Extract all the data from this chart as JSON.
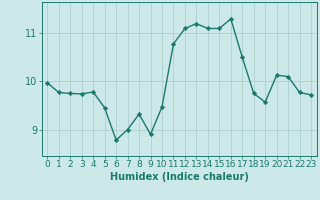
{
  "x": [
    0,
    1,
    2,
    3,
    4,
    5,
    6,
    7,
    8,
    9,
    10,
    11,
    12,
    13,
    14,
    15,
    16,
    17,
    18,
    19,
    20,
    21,
    22,
    23
  ],
  "y": [
    9.97,
    9.77,
    9.75,
    9.74,
    9.78,
    9.45,
    8.78,
    9.0,
    9.32,
    8.9,
    9.47,
    10.78,
    11.1,
    11.2,
    11.1,
    11.1,
    11.3,
    10.5,
    9.75,
    9.57,
    10.13,
    10.1,
    9.77,
    9.72
  ],
  "line_color": "#1a7a6e",
  "marker": "D",
  "marker_size": 2.2,
  "linewidth": 1.0,
  "bg_color": "#cce8e8",
  "grid_color": "#afd0d0",
  "xlabel": "Humidex (Indice chaleur)",
  "yticks": [
    9,
    10,
    11
  ],
  "ylim": [
    8.45,
    11.65
  ],
  "xlim": [
    -0.5,
    23.5
  ],
  "xlabel_fontsize": 7,
  "tick_fontsize": 6.5
}
